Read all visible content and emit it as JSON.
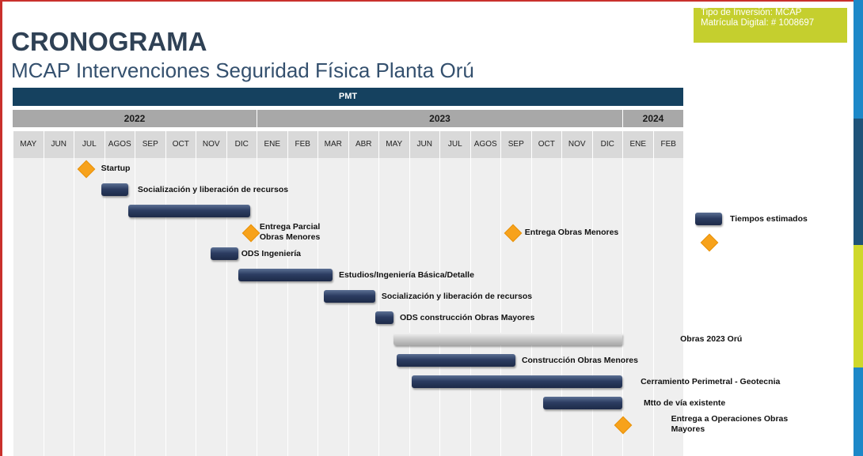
{
  "title": "CRONOGRAMA",
  "subtitle": "MCAP Intervenciones Seguridad Física Planta Orú",
  "info": {
    "line1": "Tipo de Inversión: MCAP",
    "line2": "Matrícula Digital: #  1008697"
  },
  "header": "PMT",
  "colors": {
    "header": "#15415f",
    "bar": "#2c3d62",
    "milestone": "#f7a21b",
    "info_box": "#c5cf2e"
  },
  "chart_data": {
    "type": "gantt",
    "years": [
      {
        "label": "2022",
        "start": 0,
        "end": 8
      },
      {
        "label": "2023",
        "start": 8,
        "end": 20
      },
      {
        "label": "2024",
        "start": 20,
        "end": 22
      }
    ],
    "months": [
      "MAY",
      "JUN",
      "JUL",
      "AGOS",
      "SEP",
      "OCT",
      "NOV",
      "DIC",
      "ENE",
      "FEB",
      "MAR",
      "ABR",
      "MAY",
      "JUN",
      "JUL",
      "AGOS",
      "SEP",
      "OCT",
      "NOV",
      "DIC",
      "ENE",
      "FEB"
    ],
    "tasks": [
      {
        "kind": "milestone",
        "at": 2.4,
        "row": 0,
        "label": "Startup",
        "label_at": 2.9
      },
      {
        "kind": "bar",
        "start": 2.9,
        "end": 3.8,
        "row": 1,
        "label": "Socialización y liberación de recursos",
        "label_at": 4.1
      },
      {
        "kind": "bar",
        "start": 3.8,
        "end": 7.8,
        "row": 2,
        "label": ""
      },
      {
        "kind": "milestone",
        "at": 7.8,
        "row": 3,
        "label": "Entrega Parcial\nObras Menores",
        "label_at": 8.1
      },
      {
        "kind": "milestone",
        "at": 16.4,
        "row": 3,
        "label": "Entrega Obras Menores",
        "label_at": 16.8
      },
      {
        "kind": "bar",
        "start": 6.5,
        "end": 7.4,
        "row": 4,
        "label": "ODS Ingeniería",
        "label_at": 7.5
      },
      {
        "kind": "bar",
        "start": 7.4,
        "end": 10.5,
        "row": 5,
        "label": "Estudios/Ingeniería Básica/Detalle",
        "label_at": 10.7
      },
      {
        "kind": "bar",
        "start": 10.2,
        "end": 11.9,
        "row": 6,
        "label": "Socialización y liberación de recursos",
        "label_at": 12.1
      },
      {
        "kind": "bar",
        "start": 11.9,
        "end": 12.5,
        "row": 7,
        "label": "ODS construcción Obras Mayores",
        "label_at": 12.7
      },
      {
        "kind": "bar",
        "style": "gray",
        "start": 12.5,
        "end": 20.0,
        "row": 8,
        "label": "Obras 2023 Orú",
        "label_at": 21.9
      },
      {
        "kind": "bar",
        "start": 12.6,
        "end": 16.5,
        "row": 9,
        "label": "Construcción Obras Menores",
        "label_at": 16.7
      },
      {
        "kind": "bar",
        "start": 13.1,
        "end": 20.0,
        "row": 10,
        "label": "Cerramiento Perimetral - Geotecnia",
        "label_at": 20.6
      },
      {
        "kind": "bar",
        "start": 17.4,
        "end": 20.0,
        "row": 11,
        "label": "Mtto de vía existente",
        "label_at": 20.7
      },
      {
        "kind": "milestone",
        "at": 20.0,
        "row": 12,
        "label": "Entrega a Operaciones Obras\nMayores",
        "label_at": 21.6
      }
    ],
    "legend": [
      {
        "kind": "bar",
        "label": "Tiempos estimados"
      },
      {
        "kind": "milestone",
        "label": ""
      }
    ]
  }
}
